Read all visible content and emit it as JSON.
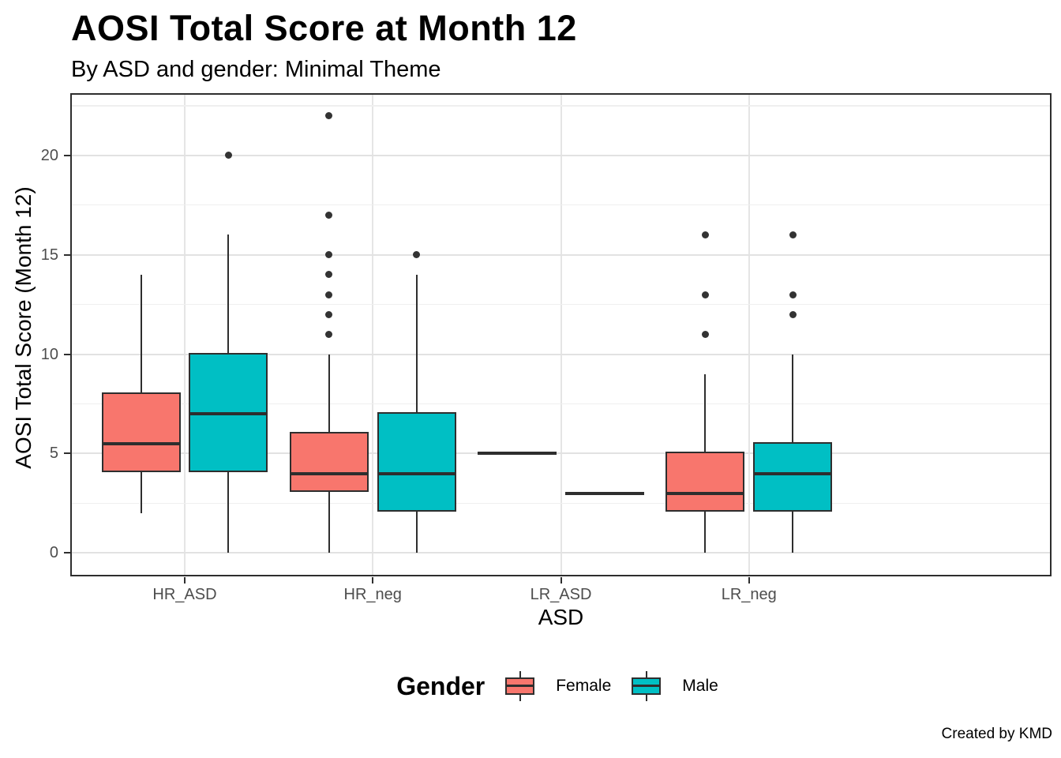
{
  "chart_data": {
    "type": "boxplot",
    "title": "AOSI Total Score at Month 12",
    "subtitle": "By ASD and gender: Minimal Theme",
    "caption": "Created by KMD",
    "xlabel": "ASD",
    "ylabel": "AOSI Total Score (Month 12)",
    "categories": [
      "HR_ASD",
      "HR_neg",
      "LR_ASD",
      "LR_neg"
    ],
    "ylim": [
      -1.1,
      23.05
    ],
    "y_major_ticks": [
      0,
      5,
      10,
      15,
      20
    ],
    "y_minor_ticks": [
      2.5,
      7.5,
      12.5,
      17.5,
      22.5
    ],
    "grid": true,
    "legend_title": "Gender",
    "legend_position": "bottom",
    "series": [
      {
        "name": "Female",
        "color": "#F8766D",
        "boxes": [
          {
            "category": "HR_ASD",
            "whisker_low": 2,
            "q1": 4,
            "median": 5.5,
            "q3": 8,
            "whisker_high": 14,
            "outliers": []
          },
          {
            "category": "HR_neg",
            "whisker_low": 0,
            "q1": 3,
            "median": 4,
            "q3": 6,
            "whisker_high": 10,
            "outliers": [
              11,
              12,
              13,
              14,
              15,
              17,
              22
            ]
          },
          {
            "category": "LR_ASD",
            "whisker_low": 5,
            "q1": 5,
            "median": 5,
            "q3": 5,
            "whisker_high": 5,
            "outliers": []
          },
          {
            "category": "LR_neg",
            "whisker_low": 0,
            "q1": 2,
            "median": 3,
            "q3": 5,
            "whisker_high": 9,
            "outliers": [
              11,
              13,
              16
            ]
          }
        ]
      },
      {
        "name": "Male",
        "color": "#00BFC4",
        "boxes": [
          {
            "category": "HR_ASD",
            "whisker_low": 0,
            "q1": 4,
            "median": 7,
            "q3": 10,
            "whisker_high": 16,
            "outliers": [
              20
            ]
          },
          {
            "category": "HR_neg",
            "whisker_low": 0,
            "q1": 2,
            "median": 4,
            "q3": 7,
            "whisker_high": 14,
            "outliers": [
              15
            ]
          },
          {
            "category": "LR_ASD",
            "whisker_low": 3,
            "q1": 3,
            "median": 3,
            "q3": 3,
            "whisker_high": 3,
            "outliers": []
          },
          {
            "category": "LR_neg",
            "whisker_low": 0,
            "q1": 2,
            "median": 4,
            "q3": 5.5,
            "whisker_high": 10,
            "outliers": [
              12,
              13,
              16
            ]
          }
        ]
      }
    ],
    "stroke_color": "#2e2e2e",
    "outlier_color": "#333333",
    "grid_major_color": "#e2e2e2",
    "grid_minor_color": "#efefef",
    "tick_label_color": "#4d4d4d",
    "background_color": "#ffffff"
  }
}
